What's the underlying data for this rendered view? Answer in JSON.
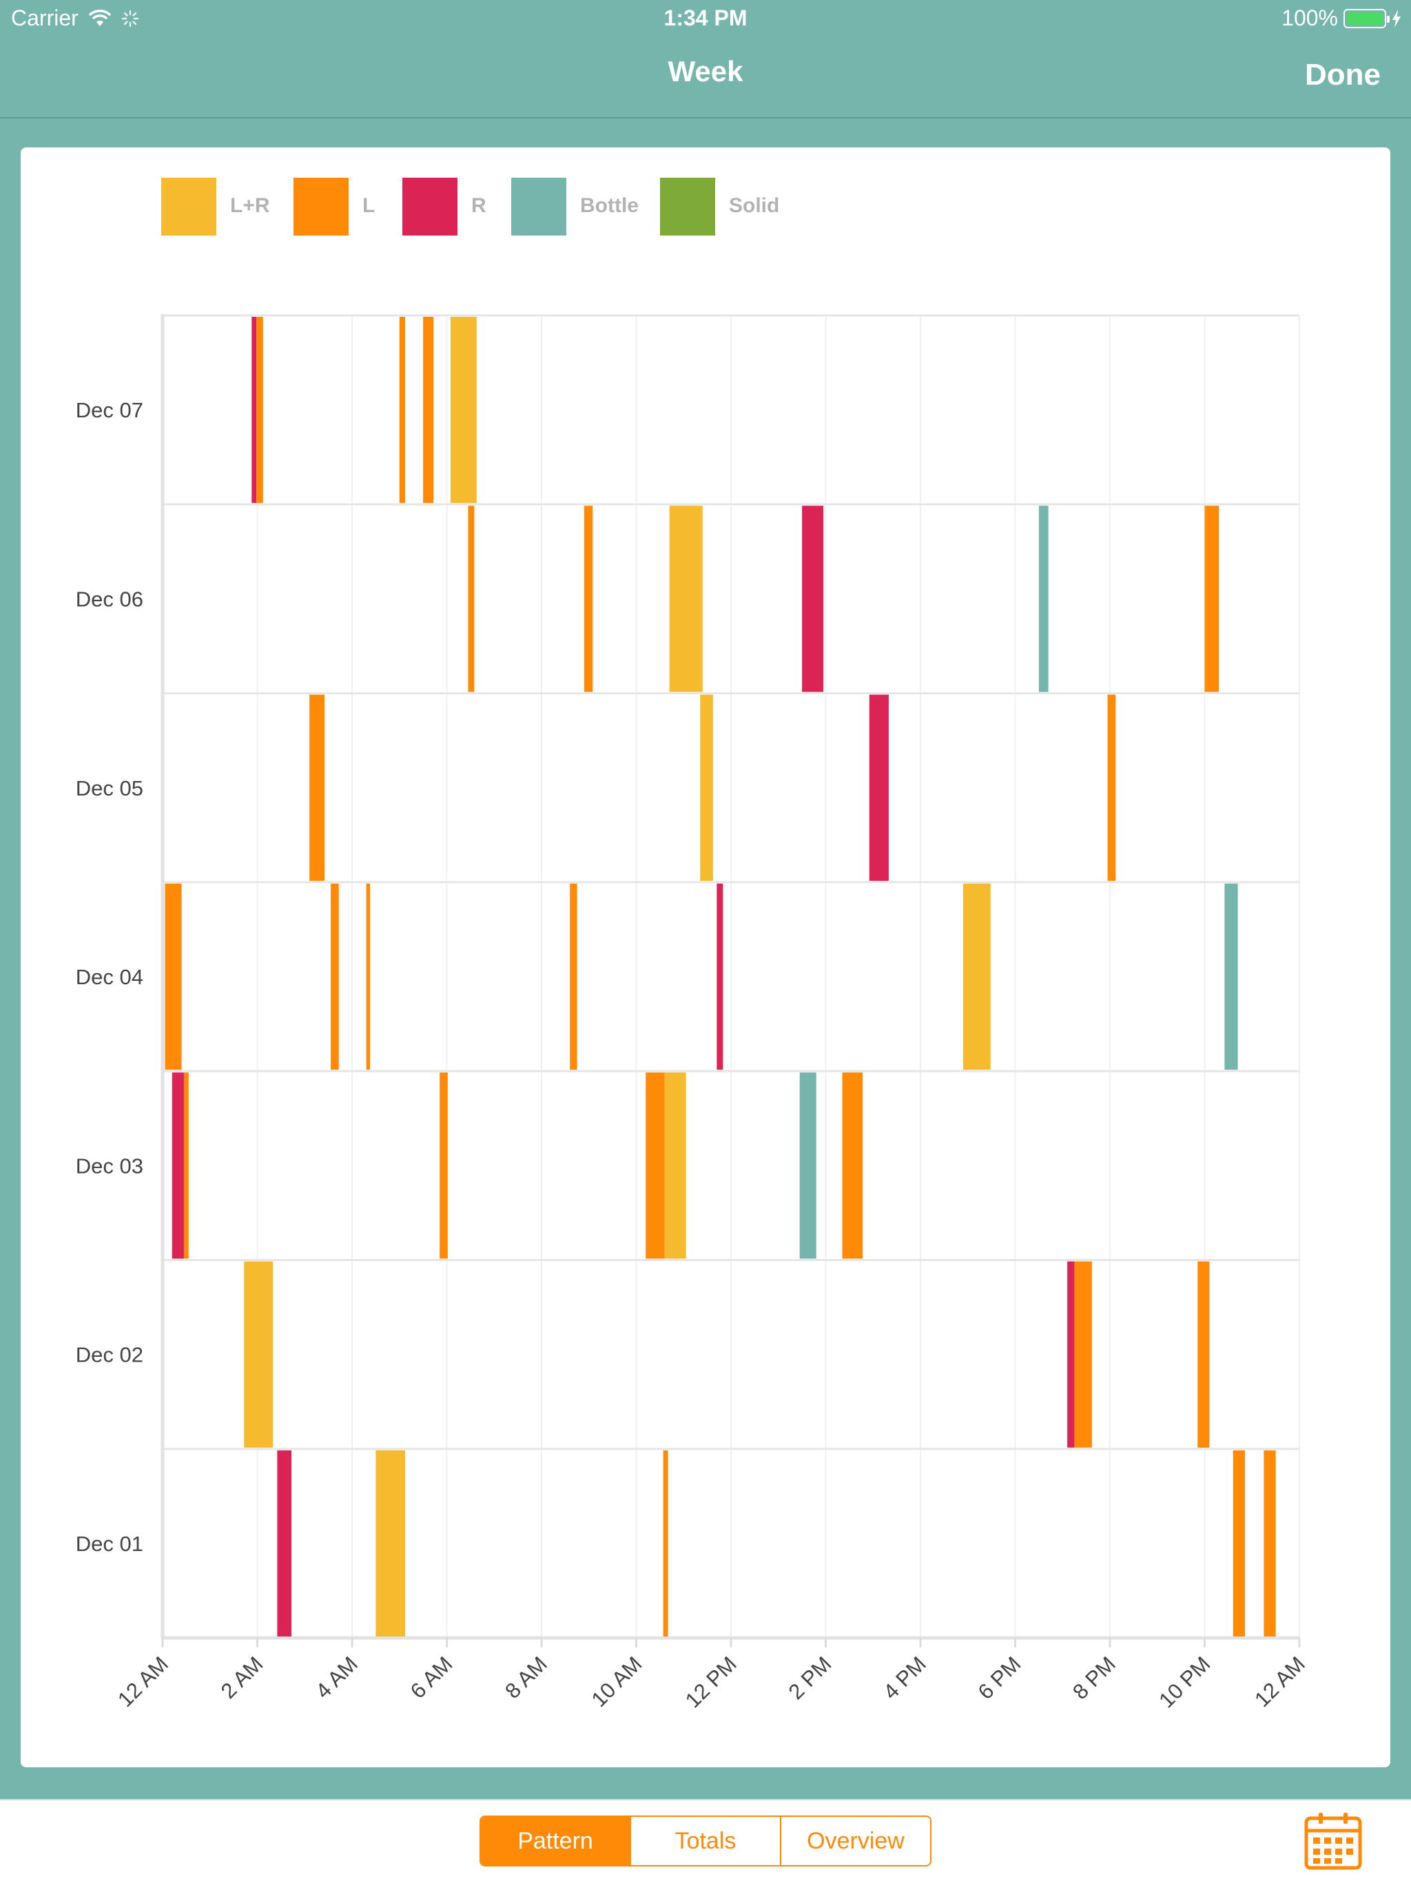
{
  "status_bar": {
    "carrier": "Carrier",
    "time": "1:34 PM",
    "battery": "100%",
    "battery_color": "#4cd964"
  },
  "nav": {
    "title": "Week",
    "done_label": "Done"
  },
  "legend": [
    {
      "label": "L+R",
      "color": "#f5ba2e"
    },
    {
      "label": "L",
      "color": "#ff8a07"
    },
    {
      "label": "R",
      "color": "#db2356"
    },
    {
      "label": "Bottle",
      "color": "#75b5ab"
    },
    {
      "label": "Solid",
      "color": "#7eaa38"
    }
  ],
  "chart_data": {
    "type": "bar",
    "subtype": "timeline",
    "title": "",
    "xlabel": "",
    "ylabel": "",
    "x_range_hours": [
      0,
      24
    ],
    "x_ticks": [
      "12 AM",
      "2 AM",
      "4 AM",
      "6 AM",
      "8 AM",
      "10 AM",
      "12 PM",
      "2 PM",
      "4 PM",
      "6 PM",
      "8 PM",
      "10 PM",
      "12 AM"
    ],
    "days": [
      "Dec 07",
      "Dec 06",
      "Dec 05",
      "Dec 04",
      "Dec 03",
      "Dec 02",
      "Dec 01"
    ],
    "colors": {
      "L+R": "#f5ba2e",
      "L": "#ff8a07",
      "R": "#db2356",
      "Bottle": "#75b5ab",
      "Solid": "#7eaa38"
    },
    "grid": true,
    "events": [
      {
        "day": "Dec 07",
        "type": "R",
        "start": 1.88,
        "end": 1.98
      },
      {
        "day": "Dec 07",
        "type": "L",
        "start": 1.98,
        "end": 2.12
      },
      {
        "day": "Dec 07",
        "type": "L",
        "start": 5.0,
        "end": 5.12
      },
      {
        "day": "Dec 07",
        "type": "L",
        "start": 5.5,
        "end": 5.72
      },
      {
        "day": "Dec 07",
        "type": "L+R",
        "start": 6.08,
        "end": 6.63
      },
      {
        "day": "Dec 06",
        "type": "L",
        "start": 6.45,
        "end": 6.58
      },
      {
        "day": "Dec 06",
        "type": "L",
        "start": 8.9,
        "end": 9.08
      },
      {
        "day": "Dec 06",
        "type": "L+R",
        "start": 10.7,
        "end": 11.4
      },
      {
        "day": "Dec 06",
        "type": "R",
        "start": 13.5,
        "end": 13.95
      },
      {
        "day": "Dec 06",
        "type": "Bottle",
        "start": 18.5,
        "end": 18.7
      },
      {
        "day": "Dec 06",
        "type": "L",
        "start": 22.0,
        "end": 22.3
      },
      {
        "day": "Dec 05",
        "type": "L",
        "start": 3.1,
        "end": 3.42
      },
      {
        "day": "Dec 05",
        "type": "L+R",
        "start": 11.35,
        "end": 11.62
      },
      {
        "day": "Dec 05",
        "type": "R",
        "start": 14.92,
        "end": 15.33
      },
      {
        "day": "Dec 05",
        "type": "L",
        "start": 19.95,
        "end": 20.12
      },
      {
        "day": "Dec 04",
        "type": "L",
        "start": 0.05,
        "end": 0.4
      },
      {
        "day": "Dec 04",
        "type": "L",
        "start": 3.55,
        "end": 3.72
      },
      {
        "day": "Dec 04",
        "type": "L",
        "start": 4.3,
        "end": 4.38
      },
      {
        "day": "Dec 04",
        "type": "L",
        "start": 8.6,
        "end": 8.75
      },
      {
        "day": "Dec 04",
        "type": "R",
        "start": 11.7,
        "end": 11.83
      },
      {
        "day": "Dec 04",
        "type": "L+R",
        "start": 16.9,
        "end": 17.48
      },
      {
        "day": "Dec 04",
        "type": "Bottle",
        "start": 22.42,
        "end": 22.7
      },
      {
        "day": "Dec 03",
        "type": "R",
        "start": 0.2,
        "end": 0.45
      },
      {
        "day": "Dec 03",
        "type": "L",
        "start": 0.45,
        "end": 0.55
      },
      {
        "day": "Dec 03",
        "type": "L",
        "start": 5.85,
        "end": 6.02
      },
      {
        "day": "Dec 03",
        "type": "L",
        "start": 10.2,
        "end": 10.6
      },
      {
        "day": "Dec 03",
        "type": "L+R",
        "start": 10.6,
        "end": 11.05
      },
      {
        "day": "Dec 03",
        "type": "Bottle",
        "start": 13.45,
        "end": 13.8
      },
      {
        "day": "Dec 03",
        "type": "L",
        "start": 14.35,
        "end": 14.78
      },
      {
        "day": "Dec 02",
        "type": "L+R",
        "start": 1.72,
        "end": 2.33
      },
      {
        "day": "Dec 02",
        "type": "R",
        "start": 19.1,
        "end": 19.25
      },
      {
        "day": "Dec 02",
        "type": "L",
        "start": 19.25,
        "end": 19.62
      },
      {
        "day": "Dec 02",
        "type": "L",
        "start": 21.85,
        "end": 22.1
      },
      {
        "day": "Dec 01",
        "type": "R",
        "start": 2.42,
        "end": 2.72
      },
      {
        "day": "Dec 01",
        "type": "L+R",
        "start": 4.5,
        "end": 5.12
      },
      {
        "day": "Dec 01",
        "type": "L",
        "start": 10.57,
        "end": 10.67
      },
      {
        "day": "Dec 01",
        "type": "L",
        "start": 22.6,
        "end": 22.85
      },
      {
        "day": "Dec 01",
        "type": "L",
        "start": 23.25,
        "end": 23.5
      }
    ]
  },
  "tabs": [
    {
      "label": "Pattern",
      "active": true
    },
    {
      "label": "Totals",
      "active": false
    },
    {
      "label": "Overview",
      "active": false
    }
  ],
  "accent_color": "#ff8a07",
  "background_color": "#75b5ab"
}
